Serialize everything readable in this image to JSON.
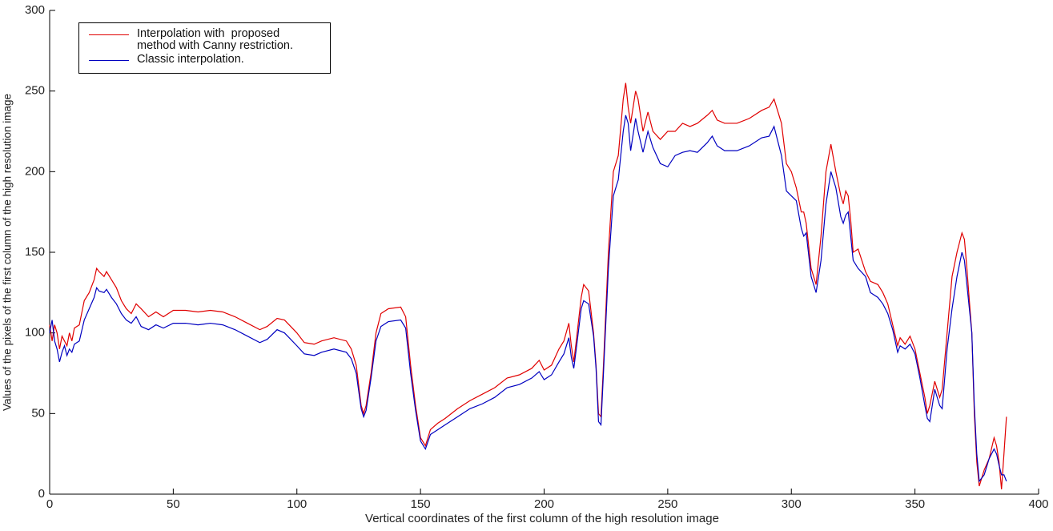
{
  "chart_data": {
    "type": "line",
    "xlabel": "Vertical coordinates of the first column of the high resolution image",
    "ylabel": "Values of the pixels of the first column of the high resolution image",
    "x": [
      0,
      1,
      2,
      3,
      4,
      5,
      6,
      7,
      8,
      9,
      10,
      12,
      14,
      16,
      18,
      19,
      20,
      22,
      23,
      25,
      27,
      29,
      31,
      33,
      35,
      37,
      40,
      43,
      46,
      50,
      55,
      60,
      65,
      70,
      75,
      80,
      85,
      88,
      92,
      95,
      100,
      103,
      107,
      110,
      115,
      120,
      122,
      124,
      126,
      127,
      128,
      130,
      132,
      134,
      137,
      142,
      144,
      146,
      148,
      150,
      152,
      154,
      157,
      160,
      165,
      170,
      175,
      180,
      185,
      190,
      195,
      198,
      200,
      203,
      206,
      208,
      210,
      211,
      212,
      213,
      215,
      216,
      218,
      220,
      221,
      222,
      223,
      224,
      226,
      228,
      230,
      232,
      233,
      234,
      235,
      237,
      238,
      240,
      242,
      244,
      247,
      250,
      253,
      256,
      259,
      262,
      266,
      268,
      270,
      273,
      278,
      283,
      288,
      291,
      293,
      296,
      298,
      300,
      302,
      304,
      305,
      306,
      308,
      310,
      312,
      314,
      316,
      318,
      320,
      321,
      322,
      323,
      324,
      325,
      327,
      330,
      332,
      335,
      337,
      339,
      341,
      343,
      344,
      346,
      348,
      350,
      352,
      354,
      355,
      356,
      358,
      360,
      361,
      363,
      365,
      367,
      369,
      370,
      371,
      373,
      374,
      375,
      376,
      378,
      380,
      382,
      383,
      384,
      385,
      386,
      387
    ],
    "series": [
      {
        "name": "Interpolation with  proposed\nmethod with Canny restriction.",
        "color": "#e00000",
        "values": [
          105,
          95,
          105,
          100,
          90,
          98,
          95,
          92,
          100,
          95,
          103,
          105,
          120,
          125,
          133,
          140,
          138,
          135,
          138,
          133,
          128,
          120,
          115,
          112,
          118,
          115,
          110,
          113,
          110,
          114,
          114,
          113,
          114,
          113,
          110,
          106,
          102,
          104,
          109,
          108,
          100,
          94,
          93,
          95,
          97,
          95,
          90,
          80,
          55,
          50,
          55,
          75,
          100,
          112,
          115,
          116,
          110,
          80,
          55,
          35,
          30,
          40,
          44,
          47,
          53,
          58,
          62,
          66,
          72,
          74,
          78,
          83,
          77,
          80,
          90,
          95,
          106,
          92,
          82,
          95,
          122,
          130,
          126,
          100,
          80,
          50,
          48,
          80,
          150,
          200,
          210,
          245,
          255,
          240,
          230,
          250,
          245,
          225,
          237,
          225,
          220,
          225,
          225,
          230,
          228,
          230,
          235,
          238,
          232,
          230,
          230,
          233,
          238,
          240,
          245,
          230,
          205,
          200,
          190,
          175,
          175,
          168,
          140,
          130,
          160,
          200,
          217,
          200,
          185,
          180,
          188,
          185,
          170,
          150,
          152,
          138,
          132,
          130,
          125,
          118,
          105,
          92,
          97,
          93,
          98,
          90,
          75,
          60,
          50,
          55,
          70,
          60,
          65,
          100,
          135,
          150,
          162,
          158,
          140,
          100,
          50,
          20,
          5,
          15,
          22,
          35,
          30,
          20,
          3,
          25,
          48
        ]
      },
      {
        "name": "Classic interpolation.",
        "color": "#0000c0",
        "values": [
          100,
          108,
          95,
          90,
          82,
          88,
          92,
          86,
          90,
          88,
          93,
          95,
          108,
          115,
          122,
          128,
          126,
          125,
          127,
          122,
          118,
          112,
          108,
          106,
          110,
          104,
          102,
          105,
          103,
          106,
          106,
          105,
          106,
          105,
          102,
          98,
          94,
          96,
          102,
          100,
          92,
          87,
          86,
          88,
          90,
          88,
          84,
          75,
          53,
          48,
          52,
          72,
          95,
          104,
          107,
          108,
          103,
          75,
          52,
          33,
          28,
          37,
          40,
          43,
          48,
          53,
          56,
          60,
          66,
          68,
          72,
          76,
          71,
          74,
          82,
          87,
          97,
          85,
          78,
          90,
          115,
          120,
          118,
          98,
          78,
          45,
          43,
          75,
          140,
          185,
          195,
          225,
          235,
          230,
          213,
          233,
          225,
          212,
          225,
          215,
          205,
          203,
          210,
          212,
          213,
          212,
          218,
          222,
          216,
          213,
          213,
          216,
          221,
          222,
          228,
          210,
          188,
          185,
          182,
          165,
          160,
          162,
          135,
          125,
          145,
          180,
          200,
          190,
          172,
          168,
          173,
          175,
          160,
          145,
          140,
          135,
          125,
          122,
          118,
          112,
          102,
          88,
          92,
          90,
          93,
          87,
          72,
          55,
          47,
          45,
          65,
          55,
          53,
          90,
          115,
          135,
          150,
          145,
          130,
          100,
          55,
          25,
          8,
          12,
          22,
          28,
          25,
          18,
          12,
          12,
          8
        ]
      }
    ],
    "xlim": [
      0,
      400
    ],
    "xticks": [
      0,
      50,
      100,
      150,
      200,
      250,
      300,
      350,
      400
    ],
    "ylim": [
      0,
      300
    ],
    "yticks": [
      0,
      50,
      100,
      150,
      200,
      250,
      300
    ],
    "grid": false,
    "legend": "upper left"
  }
}
